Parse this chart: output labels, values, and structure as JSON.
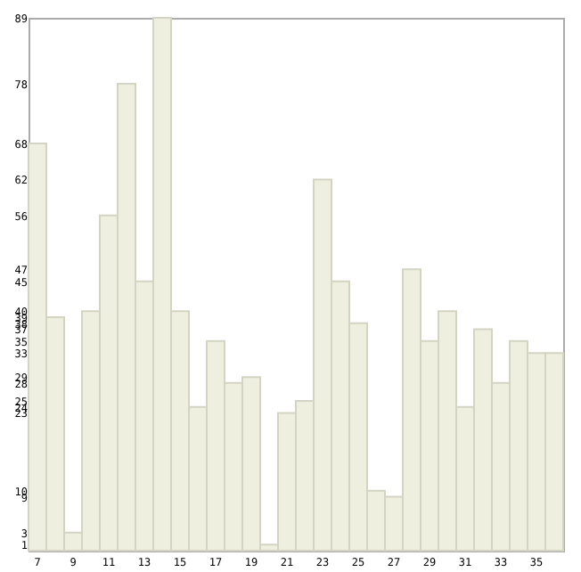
{
  "chart_data": {
    "type": "bar",
    "categories": [
      "7",
      null,
      "9",
      null,
      "11",
      null,
      "13",
      null,
      "15",
      null,
      "17",
      null,
      "19",
      null,
      "21",
      null,
      "23",
      null,
      "25",
      null,
      "27",
      null,
      "29",
      null,
      "31",
      null,
      "33",
      null,
      "35",
      null
    ],
    "values": [
      68,
      39,
      3,
      40,
      56,
      78,
      45,
      89,
      40,
      24,
      35,
      28,
      29,
      1,
      23,
      25,
      62,
      45,
      38,
      10,
      9,
      47,
      35,
      40,
      24,
      37,
      28,
      35,
      33,
      33
    ],
    "color": "#efefdf",
    "ylim": [
      0,
      89
    ],
    "yticks": [
      1,
      3,
      9,
      10,
      23,
      24,
      25,
      28,
      29,
      33,
      35,
      37,
      38,
      39,
      40,
      45,
      47,
      56,
      62,
      68,
      78,
      89
    ],
    "grid": false
  }
}
